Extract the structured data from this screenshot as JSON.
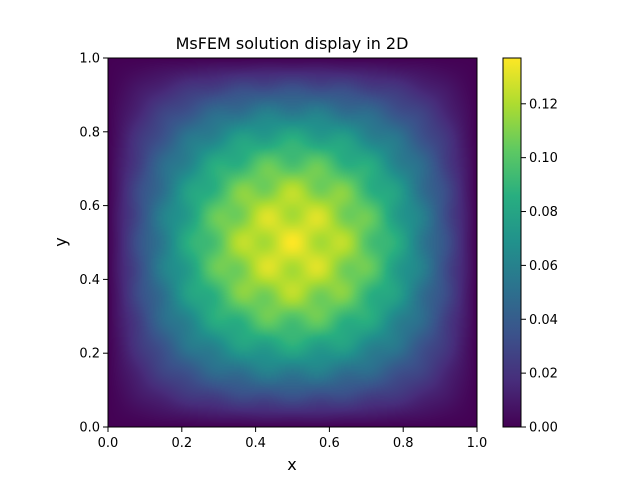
{
  "chart_data": {
    "type": "heatmap",
    "title": "MsFEM solution display in 2D",
    "xlabel": "x",
    "ylabel": "y",
    "xlim": [
      0.0,
      1.0
    ],
    "ylim": [
      0.0,
      1.0
    ],
    "x_ticks": [
      "0.0",
      "0.2",
      "0.4",
      "0.6",
      "0.8",
      "1.0"
    ],
    "y_ticks": [
      "0.0",
      "0.2",
      "0.4",
      "0.6",
      "0.8",
      "1.0"
    ],
    "colorbar": {
      "colormap": "viridis",
      "range": [
        0.0,
        0.137
      ],
      "ticks": [
        "0.00",
        "0.02",
        "0.04",
        "0.06",
        "0.08",
        "0.10",
        "0.12"
      ]
    },
    "field": {
      "description_of_values": "u(x,y) peaks near the center (0.5,0.5) at ~0.137 and falls to 0 on the boundary",
      "peak_value": 0.137,
      "peak_location": [
        0.5,
        0.5
      ],
      "boundary_value": 0.0
    }
  }
}
